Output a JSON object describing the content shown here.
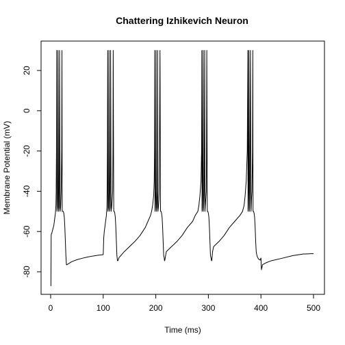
{
  "chart_data": {
    "type": "line",
    "title": "Chattering Izhikevich Neuron",
    "xlabel": "Time (ms)",
    "ylabel": "Membrane Potential (mV)",
    "xlim": [
      0,
      500
    ],
    "ylim": [
      -90,
      30
    ],
    "xticks": [
      0,
      100,
      200,
      300,
      400,
      500
    ],
    "yticks": [
      -80,
      -60,
      -40,
      -20,
      0,
      20
    ],
    "grid": false,
    "series": [
      {
        "color": "#000000",
        "x": [
          0,
          0.5,
          1,
          1.5,
          2,
          3,
          4,
          5,
          6,
          7,
          8,
          9,
          10,
          10.5,
          11,
          11.5,
          12,
          13,
          13.5,
          14,
          15,
          16,
          16.5,
          17,
          18,
          19,
          20,
          21,
          21.5,
          22,
          23,
          24,
          25,
          26,
          27,
          28,
          29,
          30,
          31,
          40,
          50,
          60,
          70,
          80,
          90,
          100,
          101,
          102,
          103,
          104,
          105,
          106,
          107,
          107.5,
          108,
          108.5,
          109,
          110,
          110.5,
          111,
          112,
          113,
          113.5,
          114,
          115,
          116,
          117,
          118,
          118.5,
          119,
          120,
          121,
          122,
          123,
          124,
          125,
          126,
          126.5,
          127,
          128,
          130,
          140,
          150,
          160,
          170,
          180,
          185,
          190,
          192,
          194,
          196,
          197,
          197.5,
          198,
          198.5,
          199,
          200,
          200.5,
          201,
          202,
          203,
          203.5,
          204,
          205,
          206,
          206.5,
          207,
          208,
          209,
          210,
          211,
          212,
          213,
          214,
          215,
          216,
          216.5,
          217,
          218,
          220,
          230,
          240,
          250,
          260,
          270,
          275,
          280,
          282,
          284,
          286,
          287,
          287.5,
          288,
          288.5,
          289,
          290,
          290.5,
          291,
          292,
          293,
          293.5,
          294,
          295,
          296,
          296.5,
          297,
          298,
          299,
          300,
          301,
          302,
          303,
          304,
          305,
          306,
          306.5,
          307,
          308,
          310,
          320,
          330,
          340,
          350,
          360,
          365,
          368,
          370,
          372,
          374,
          375,
          375.5,
          376,
          376.5,
          377,
          378,
          378.5,
          379,
          380,
          381,
          381.5,
          382,
          383,
          384,
          384.5,
          385,
          386,
          387,
          388,
          389,
          390,
          391,
          392,
          393,
          394,
          395,
          396,
          397,
          398,
          398.5,
          399,
          399.5,
          400,
          400.5,
          401,
          401.5,
          402,
          402.5,
          403,
          410,
          420,
          440,
          460,
          480,
          500
        ],
        "y": [
          -87,
          -87,
          -62,
          -61,
          -61,
          -60,
          -59,
          -58,
          -57,
          -55,
          -53,
          -51,
          -47,
          -40,
          -20,
          30,
          -50,
          -48,
          -40,
          30,
          -50,
          -48,
          -30,
          30,
          -50,
          -48,
          -40,
          -20,
          30,
          -50,
          -50,
          -50,
          -51,
          -53,
          -58,
          -65,
          -72,
          -76.5,
          -76.5,
          -75,
          -74,
          -73.3,
          -72.7,
          -72.2,
          -71.8,
          -71.5,
          -63,
          -60,
          -58,
          -56,
          -54,
          -52,
          -48,
          -40,
          -20,
          30,
          -50,
          -48,
          -40,
          30,
          -50,
          -48,
          -30,
          30,
          -50,
          -48,
          -44,
          -40,
          -20,
          30,
          -50,
          -50,
          -51,
          -53,
          -58,
          -65,
          -72,
          -73,
          -74.5,
          -74.5,
          -73,
          -70,
          -67.5,
          -65,
          -62,
          -58,
          -55,
          -52,
          -50,
          -47,
          -42,
          -35,
          -20,
          30,
          -50,
          -48,
          -40,
          30,
          -50,
          -48,
          -40,
          30,
          -50,
          -48,
          -44,
          -40,
          -20,
          30,
          -50,
          -50,
          -51,
          -53,
          -58,
          -65,
          -72,
          -73,
          -74.5,
          -74.5,
          -73,
          -70,
          -67.5,
          -65,
          -62,
          -58,
          -55,
          -52,
          -50,
          -47,
          -42,
          -35,
          -20,
          30,
          -50,
          -48,
          -40,
          30,
          -50,
          -48,
          -40,
          30,
          -50,
          -48,
          -44,
          -40,
          -20,
          30,
          -50,
          -50,
          -51,
          -53,
          -58,
          -65,
          -72,
          -73,
          -74.5,
          -74.5,
          -73,
          -70,
          -67.5,
          -65,
          -62,
          -58,
          -55,
          -52,
          -50,
          -47,
          -42,
          -35,
          -20,
          30,
          -50,
          -48,
          -40,
          30,
          -50,
          -48,
          -40,
          30,
          -50,
          -48,
          -44,
          -40,
          -20,
          30,
          -50,
          -50,
          -51,
          -53,
          -58,
          -65,
          -70,
          -71.5,
          -72.5,
          -73,
          -73.5,
          -73.8,
          -74,
          -74,
          -74.2,
          -73.8,
          -73.5,
          -73.2,
          -76.5,
          -79,
          -78,
          -78,
          -77,
          -76.5,
          -75.5,
          -74.5,
          -73.3,
          -72,
          -71.2,
          -71
        ]
      }
    ]
  }
}
